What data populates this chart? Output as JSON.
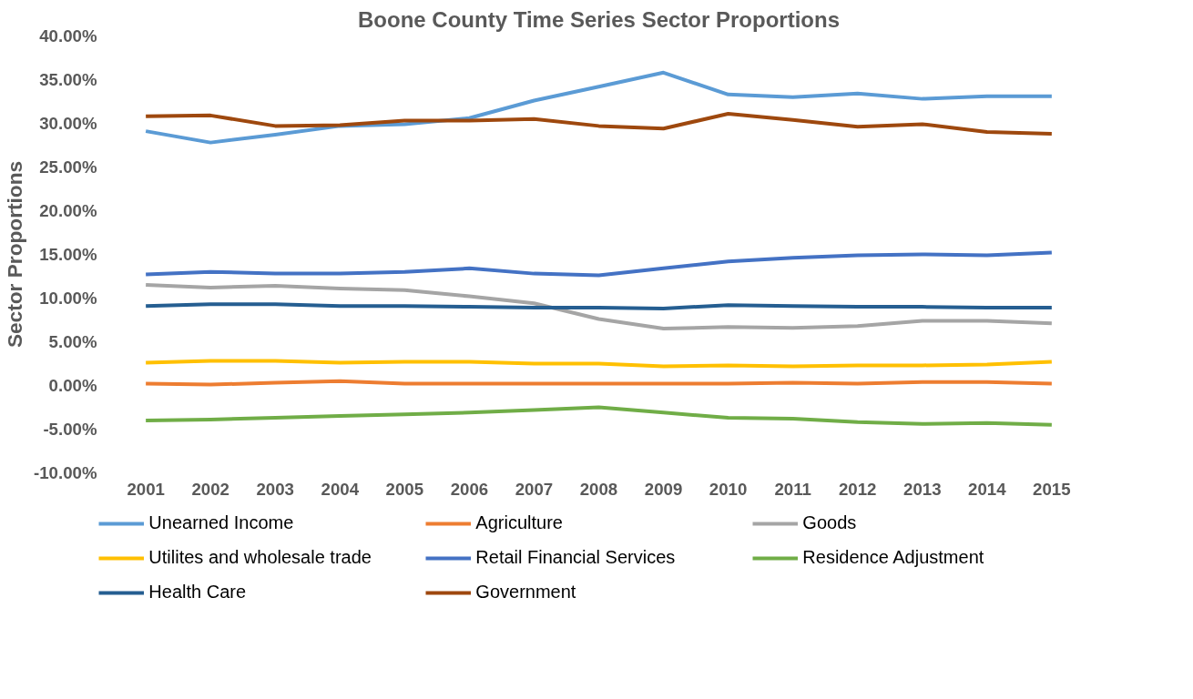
{
  "chart_data": {
    "type": "line",
    "title": "Boone County Time Series Sector Proportions",
    "ylabel": "Sector Proportions",
    "categories": [
      "2001",
      "2002",
      "2003",
      "2004",
      "2005",
      "2006",
      "2007",
      "2008",
      "2009",
      "2010",
      "2011",
      "2012",
      "2013",
      "2014",
      "2015"
    ],
    "ylim": [
      -10,
      40
    ],
    "yticks": [
      {
        "value": -10,
        "label": "-10.00%"
      },
      {
        "value": -5,
        "label": "-5.00%"
      },
      {
        "value": 0,
        "label": "0.00%"
      },
      {
        "value": 5,
        "label": "5.00%"
      },
      {
        "value": 10,
        "label": "10.00%"
      },
      {
        "value": 15,
        "label": "15.00%"
      },
      {
        "value": 20,
        "label": "20.00%"
      },
      {
        "value": 25,
        "label": "25.00%"
      },
      {
        "value": 30,
        "label": "30.00%"
      },
      {
        "value": 35,
        "label": "35.00%"
      },
      {
        "value": 40,
        "label": "40.00%"
      }
    ],
    "grid": false,
    "legend": "bottom",
    "marker": "none",
    "line_style": "solid",
    "series": [
      {
        "name": "Unearned Income",
        "color": "#5b9bd5",
        "values": [
          29.1,
          27.8,
          28.7,
          29.7,
          29.9,
          30.6,
          32.6,
          34.2,
          35.8,
          33.3,
          33.0,
          33.4,
          32.8,
          33.1,
          33.1
        ]
      },
      {
        "name": "Agriculture",
        "color": "#ed7d31",
        "values": [
          0.2,
          0.1,
          0.3,
          0.5,
          0.2,
          0.2,
          0.2,
          0.2,
          0.2,
          0.2,
          0.3,
          0.2,
          0.4,
          0.4,
          0.2
        ]
      },
      {
        "name": "Goods",
        "color": "#a5a5a5",
        "values": [
          11.5,
          11.2,
          11.4,
          11.1,
          10.9,
          10.2,
          9.4,
          7.6,
          6.5,
          6.7,
          6.6,
          6.8,
          7.4,
          7.4,
          7.1
        ]
      },
      {
        "name": "Utilites and wholesale trade",
        "color": "#ffc000",
        "values": [
          2.6,
          2.8,
          2.8,
          2.6,
          2.7,
          2.7,
          2.5,
          2.5,
          2.2,
          2.3,
          2.2,
          2.3,
          2.3,
          2.4,
          2.7
        ]
      },
      {
        "name": "Retail Financial Services",
        "color": "#4472c4",
        "values": [
          12.7,
          13.0,
          12.8,
          12.8,
          13.0,
          13.4,
          12.8,
          12.6,
          13.4,
          14.2,
          14.6,
          14.9,
          15.0,
          14.9,
          15.2
        ]
      },
      {
        "name": "Residence Adjustment",
        "color": "#70ad47",
        "values": [
          -4.0,
          -3.9,
          -3.7,
          -3.5,
          -3.3,
          -3.1,
          -2.8,
          -2.5,
          -3.1,
          -3.7,
          -3.8,
          -4.2,
          -4.4,
          -4.3,
          -4.5
        ]
      },
      {
        "name": "Health Care",
        "color": "#255e91",
        "values": [
          9.1,
          9.3,
          9.3,
          9.1,
          9.1,
          9.0,
          8.9,
          8.9,
          8.8,
          9.2,
          9.1,
          9.0,
          9.0,
          8.9,
          8.9
        ]
      },
      {
        "name": "Government",
        "color": "#9e480e",
        "values": [
          30.8,
          30.9,
          29.7,
          29.8,
          30.3,
          30.3,
          30.5,
          29.7,
          29.4,
          31.1,
          30.4,
          29.6,
          29.9,
          29.0,
          28.8
        ]
      }
    ]
  }
}
